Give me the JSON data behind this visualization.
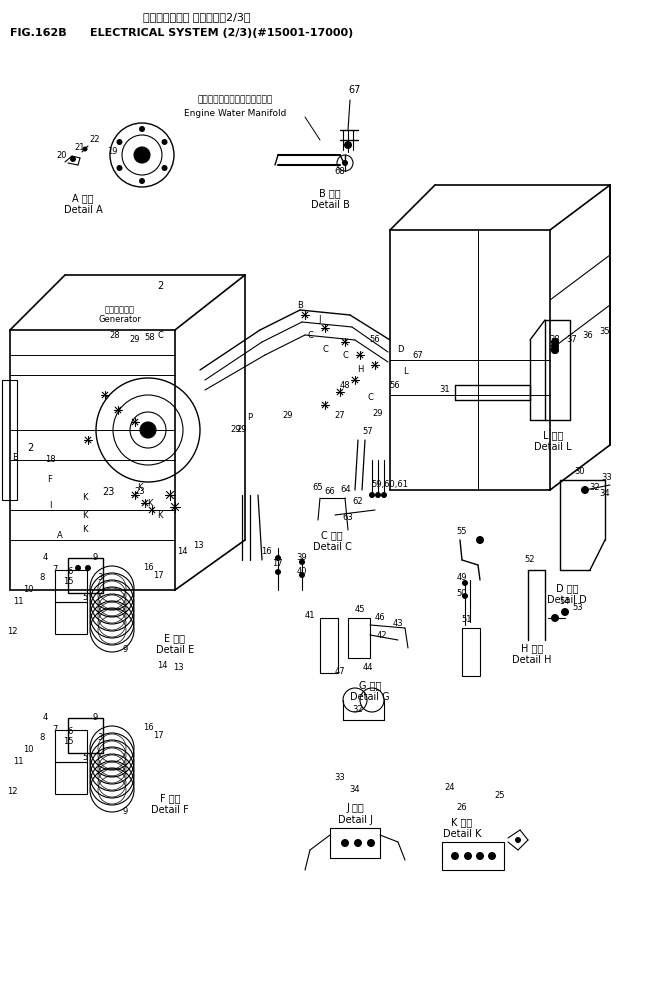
{
  "title_jp": "エレクトリカル システム（2/3）",
  "title_en": "ELECTRICAL SYSTEM (2/3)(#15001-17000)",
  "fig_label": "FIG.162B",
  "bg_color": "#ffffff",
  "line_color": "#000000",
  "text_color": "#000000",
  "fig_width": 6.49,
  "fig_height": 9.91,
  "dpi": 100
}
